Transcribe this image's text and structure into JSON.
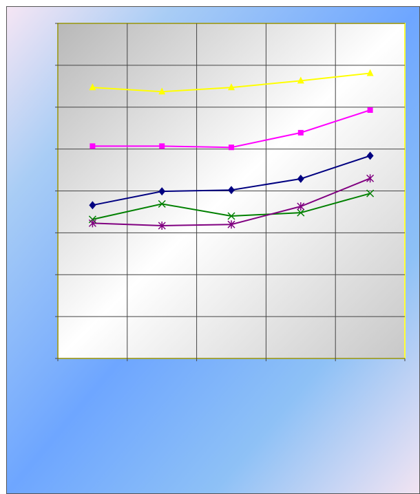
{
  "chart_data": {
    "type": "line",
    "categories": [
      null,
      null,
      null,
      null,
      null
    ],
    "series": [
      {
        "color": "#ffff00",
        "marker": "triangle",
        "values": [
          6.47,
          6.37,
          6.47,
          6.63,
          6.81
        ]
      },
      {
        "color": "#ff00ff",
        "marker": "square",
        "values": [
          5.07,
          5.07,
          5.04,
          5.39,
          5.93
        ]
      },
      {
        "color": "#000080",
        "marker": "diamond",
        "values": [
          3.66,
          3.99,
          4.02,
          4.29,
          4.84
        ]
      },
      {
        "color": "#008000",
        "marker": "x",
        "values": [
          3.32,
          3.69,
          3.4,
          3.48,
          3.94
        ]
      },
      {
        "color": "#800080",
        "marker": "star",
        "values": [
          3.23,
          3.17,
          3.2,
          3.63,
          4.3
        ]
      }
    ],
    "ylim": [
      0,
      8
    ],
    "yticks": [
      0,
      1,
      2,
      3,
      4,
      5,
      6,
      7,
      8
    ],
    "grid": true
  }
}
